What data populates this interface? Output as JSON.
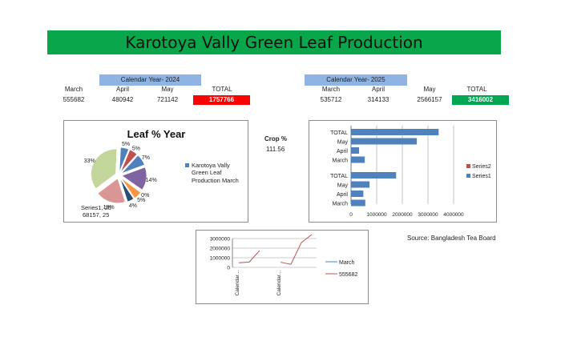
{
  "title": "Karotoya Vally Green Leaf Production",
  "year2024": {
    "header": "Calendar Year- 2024",
    "columns": [
      "March",
      "April",
      "May",
      "TOTAL"
    ],
    "values": [
      "555682",
      "480942",
      "721142",
      "1757766"
    ]
  },
  "year2025": {
    "header": "Calendar Year- 2025",
    "columns": [
      "March",
      "April",
      "May",
      "TOTAL"
    ],
    "values": [
      "535712",
      "314133",
      "2566157",
      "3416002"
    ]
  },
  "crop": {
    "label": "Crop %",
    "value": "111.56"
  },
  "source": "Source: Bangladesh Tea Board",
  "colors": {
    "title_bg": "#0aa64b",
    "header_bg": "#8db4e2",
    "total_2024": "#ff0000",
    "total_2025": "#00a651"
  },
  "chart_data": [
    {
      "type": "pie",
      "title": "Leaf % Year",
      "legend": [
        "Karotoya Vally",
        "Green Leaf",
        "Production  March"
      ],
      "legend_position": "right",
      "slice_labels": [
        "5%",
        "5%",
        "7%",
        "14%",
        "0%",
        "5%",
        "4%",
        "18%",
        "33%"
      ],
      "slices": [
        {
          "value": 5,
          "color": "#4f81bd"
        },
        {
          "value": 5,
          "color": "#c0504d"
        },
        {
          "value": 7,
          "color": "#4f81bd"
        },
        {
          "value": 14,
          "color": "#8064a2"
        },
        {
          "value": 0.5,
          "color": "#4bacc6"
        },
        {
          "value": 5,
          "color": "#f79646"
        },
        {
          "value": 4,
          "color": "#2c4d75"
        },
        {
          "value": 18,
          "color": "#d99694"
        },
        {
          "value": 33,
          "color": "#c3d69b"
        }
      ],
      "callout": [
        "Series1, 25",
        "68157, 25"
      ]
    },
    {
      "type": "bar",
      "orientation": "horizontal",
      "groups": [
        {
          "categories": [
            "TOTAL",
            "May",
            "April",
            "March"
          ],
          "values": [
            3416002,
            2566157,
            314133,
            535712
          ]
        },
        {
          "categories": [
            "TOTAL",
            "May",
            "April",
            "March"
          ],
          "values": [
            1757766,
            721142,
            480942,
            555682
          ]
        }
      ],
      "legend": [
        "Series2",
        "Series1"
      ],
      "legend_colors": [
        "#c0504d",
        "#4f81bd"
      ],
      "xlim": [
        0,
        4000000
      ],
      "xticks": [
        "0",
        "1000000",
        "2000000",
        "3000000",
        "4000000"
      ],
      "grid": true
    },
    {
      "type": "line",
      "yticks": [
        "3000000",
        "2000000",
        "1000000",
        "0"
      ],
      "ylim": [
        0,
        3000000
      ],
      "xticks": [
        "Calendar...",
        "Calendar..."
      ],
      "series": [
        {
          "name": "March",
          "color": "#4f81bd",
          "values": []
        },
        {
          "name": "555682",
          "color": "#c0504d",
          "values": [
            480942,
            555682,
            1757766,
            null,
            535712,
            314133,
            2566157,
            3416002
          ]
        }
      ],
      "grid": true
    }
  ]
}
